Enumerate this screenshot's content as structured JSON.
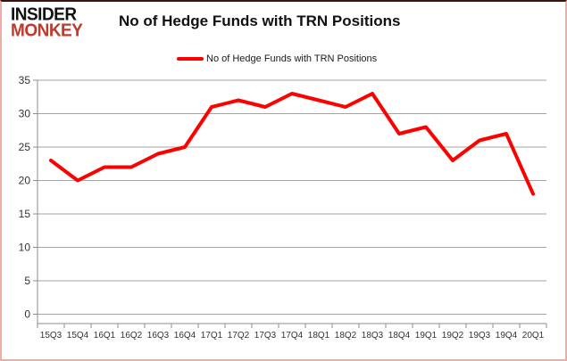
{
  "header": {
    "logo_line1": "INSIDER",
    "logo_line2": "MONKEY",
    "logo_color": "#c0392b",
    "title": "No of Hedge Funds with TRN Positions"
  },
  "legend": {
    "label": "No of Hedge Funds with TRN Positions",
    "swatch_color": "#ff0000",
    "position": "top"
  },
  "chart_data": {
    "type": "line",
    "title": "No of Hedge Funds with TRN Positions",
    "categories": [
      "15Q3",
      "15Q4",
      "16Q1",
      "16Q2",
      "16Q3",
      "16Q4",
      "17Q1",
      "17Q2",
      "17Q3",
      "17Q4",
      "18Q1",
      "18Q2",
      "18Q3",
      "18Q4",
      "19Q1",
      "19Q2",
      "19Q3",
      "19Q4",
      "20Q1"
    ],
    "series": [
      {
        "name": "No of Hedge Funds with TRN Positions",
        "color": "#ff0000",
        "values": [
          23,
          20,
          22,
          22,
          24,
          25,
          31,
          32,
          31,
          33,
          32,
          31,
          33,
          27,
          28,
          23,
          26,
          27,
          18
        ]
      }
    ],
    "xlabel": "",
    "ylabel": "",
    "ylim": [
      0,
      35
    ],
    "yticks": [
      0,
      5,
      10,
      15,
      20,
      25,
      30,
      35
    ],
    "grid": "horizontal",
    "legend_position": "top",
    "colors": {
      "line": "#ff0000",
      "grid": "#a3a3a3",
      "axis": "#8c8c8c",
      "tick_text": "#333333",
      "title_text": "#111111"
    }
  }
}
